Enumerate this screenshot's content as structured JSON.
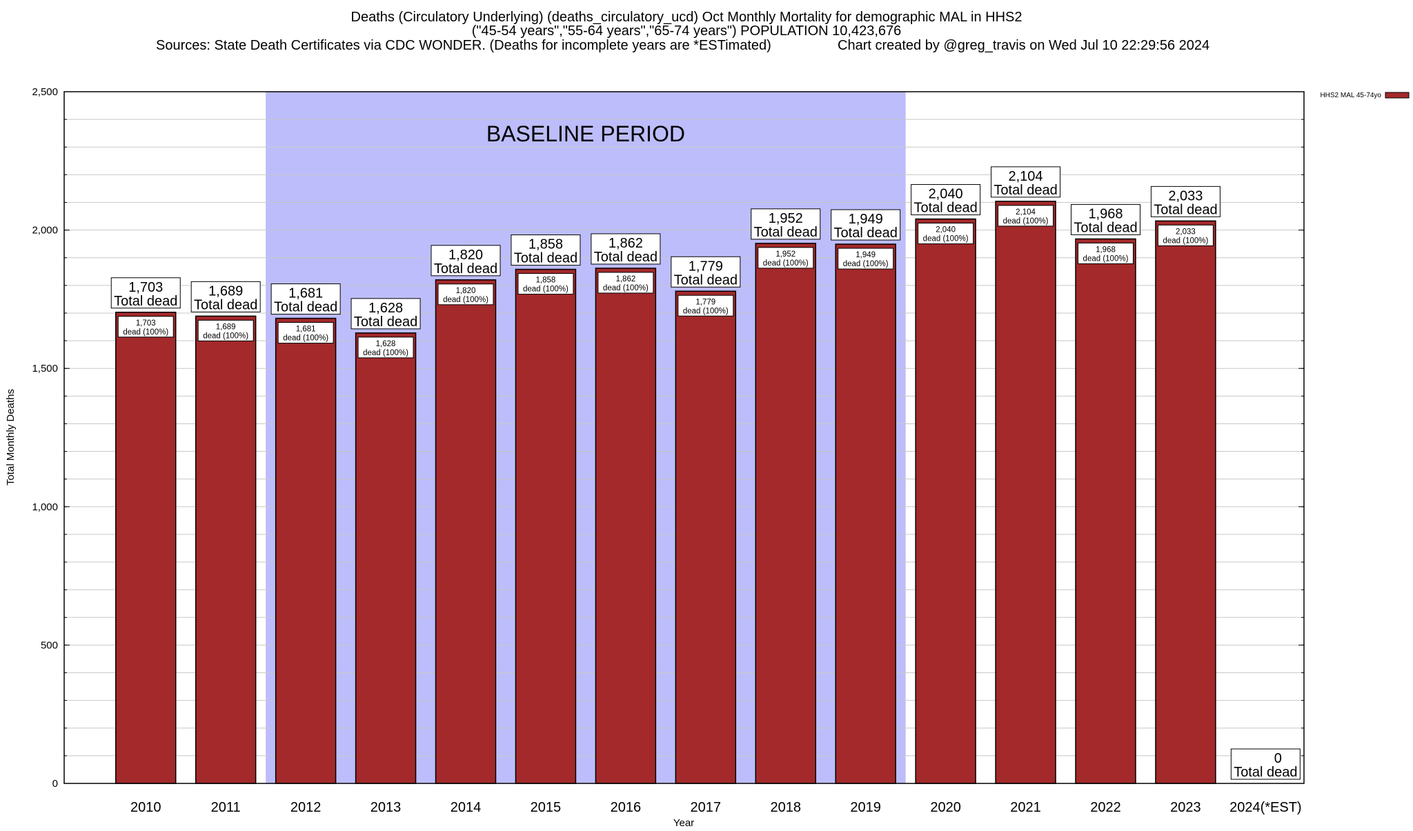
{
  "chart_data": {
    "type": "bar",
    "title_lines": [
      "Deaths (Circulatory Underlying) (deaths_circulatory_ucd) Oct Monthly Mortality for demographic MAL in HHS2",
      "(\"45-54 years\",\"55-64 years\",\"65-74 years\") POPULATION 10,423,676",
      "Sources: State Death Certificates via CDC WONDER. (Deaths for incomplete years are *ESTimated)",
      "Chart created by @greg_travis on Wed Jul 10 22:29:56 2024"
    ],
    "xlabel": "Year",
    "ylabel": "Total Monthly Deaths",
    "ylim": [
      0,
      2500
    ],
    "yticks": [
      0,
      500,
      1000,
      1500,
      2000,
      2500
    ],
    "ytick_labels": [
      "0",
      "500",
      "1,000",
      "1,500",
      "2,000",
      "2,500"
    ],
    "grid": true,
    "categories": [
      "2010",
      "2011",
      "2012",
      "2013",
      "2014",
      "2015",
      "2016",
      "2017",
      "2018",
      "2019",
      "2020",
      "2021",
      "2022",
      "2023",
      "2024(*EST)"
    ],
    "series": [
      {
        "name": "HHS2 MAL 45-74yo",
        "color": "#a3292b",
        "values": [
          1703,
          1689,
          1681,
          1628,
          1820,
          1858,
          1862,
          1779,
          1952,
          1949,
          2040,
          2104,
          1968,
          2033,
          0
        ]
      }
    ],
    "value_labels": [
      "1,703",
      "1,689",
      "1,681",
      "1,628",
      "1,820",
      "1,858",
      "1,862",
      "1,779",
      "1,952",
      "1,949",
      "2,040",
      "2,104",
      "1,968",
      "2,033",
      "0"
    ],
    "total_label_text": "Total dead",
    "inner_label_text": "dead (100%)",
    "baseline": {
      "label": "BASELINE PERIOD",
      "start": "2012",
      "end": "2019",
      "color": "#bdbdfb"
    },
    "legend": {
      "position": "top-right",
      "label": "HHS2 MAL 45-74yo"
    }
  }
}
